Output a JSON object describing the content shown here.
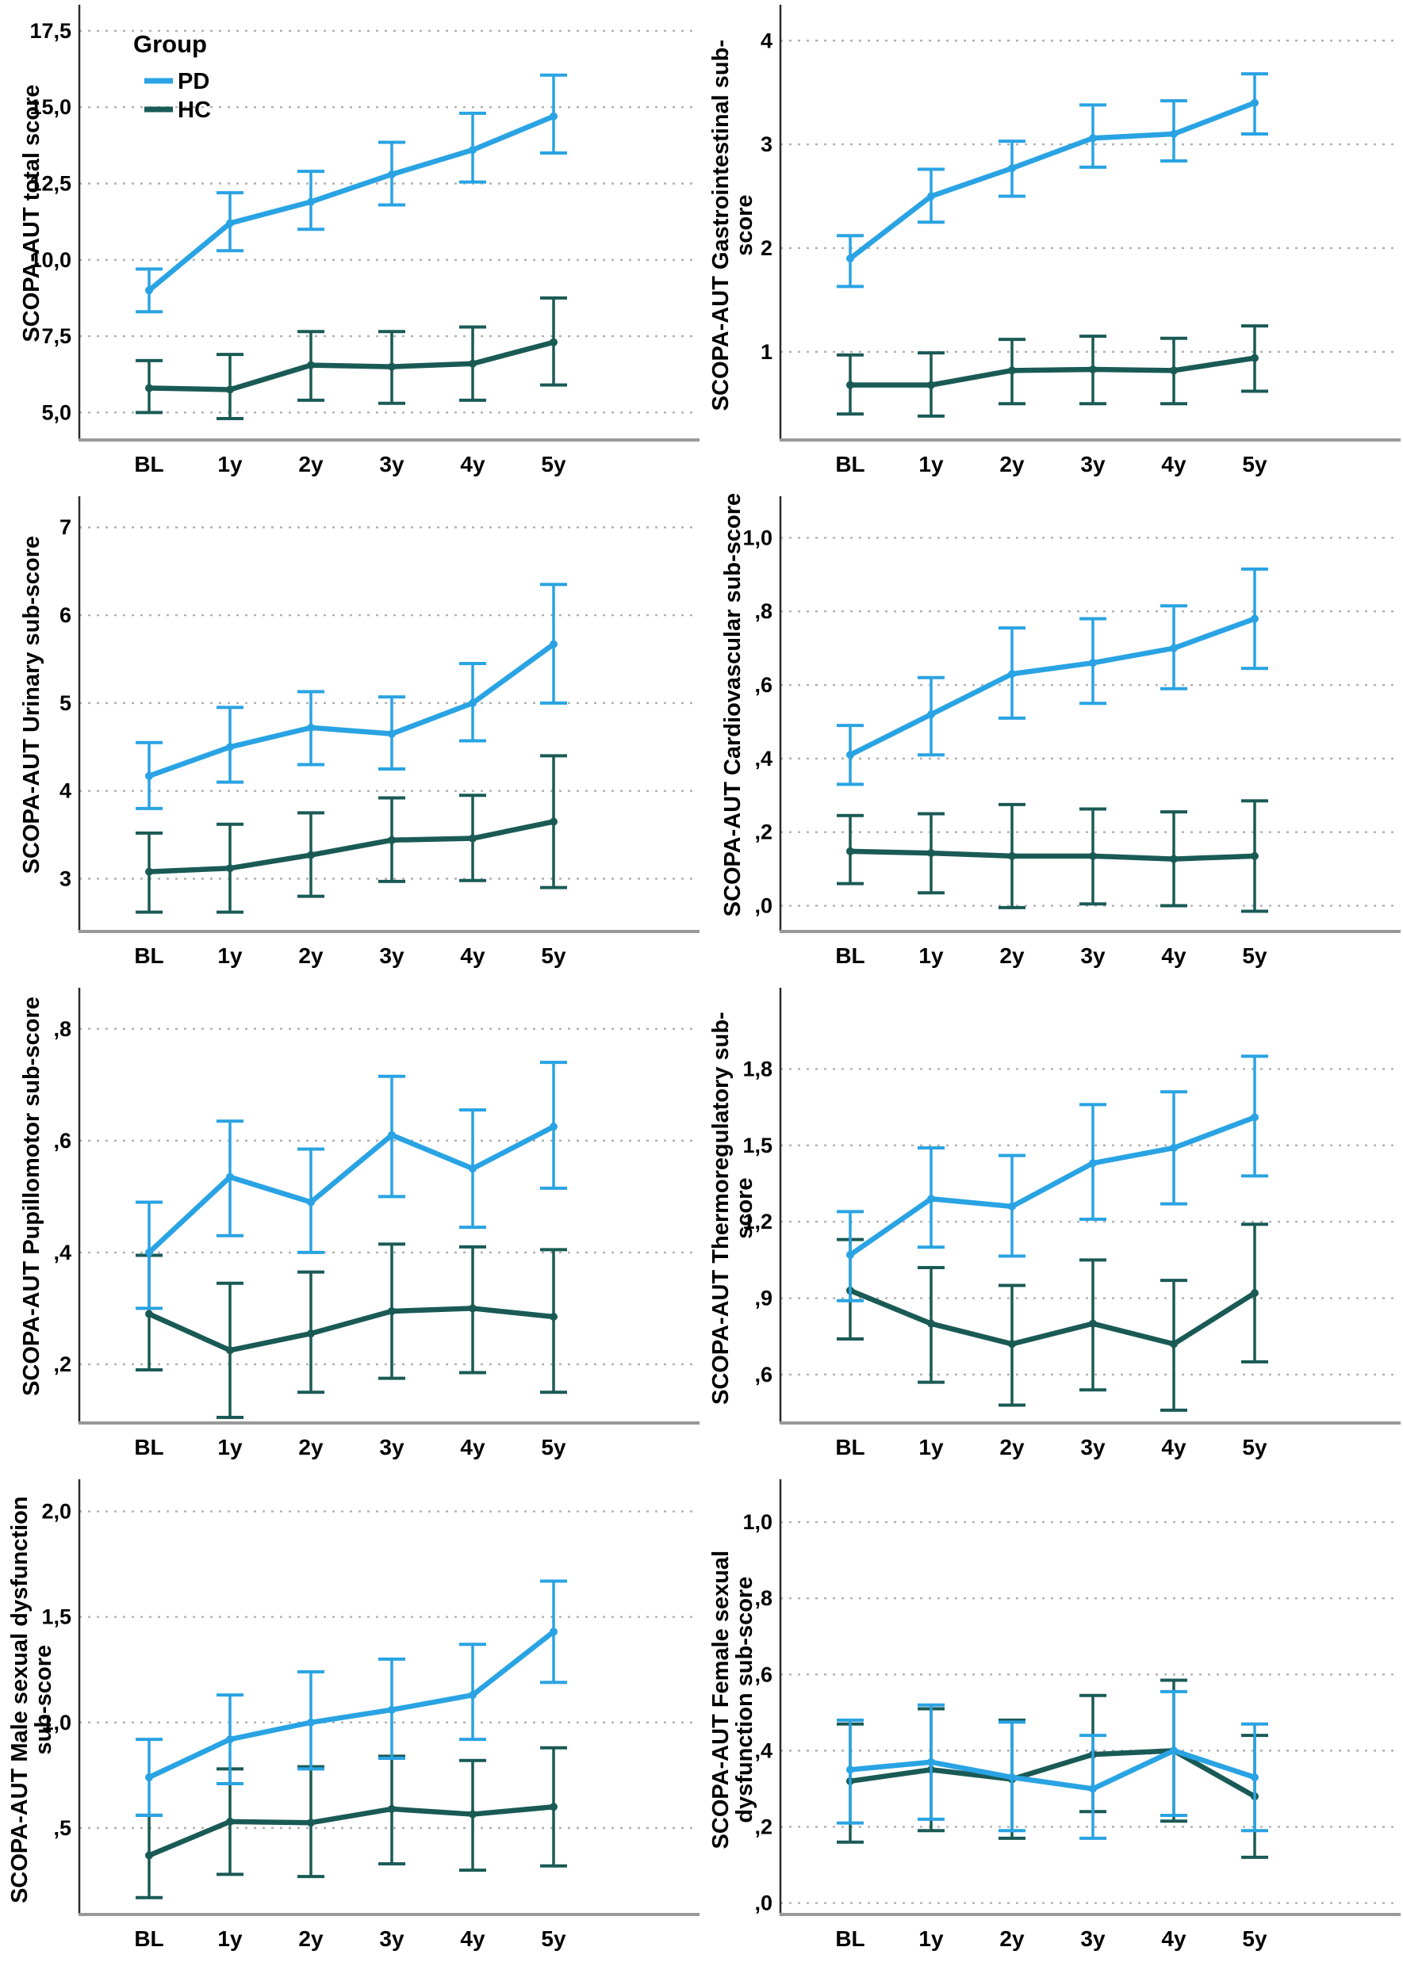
{
  "colors": {
    "pd": "#29A3E3",
    "hc": "#1A5A55",
    "grid": "#b0b0b0",
    "spine_left": "#2a2a2a",
    "spine_bottom": "#999999",
    "text": "#000000"
  },
  "legend": {
    "title": "Group",
    "items": [
      {
        "label": "PD",
        "colorKey": "pd"
      },
      {
        "label": "HC",
        "colorKey": "hc"
      }
    ]
  },
  "chart_data": [
    {
      "type": "line",
      "title": "SCOPA-AUT total score",
      "categories": [
        "BL",
        "1y",
        "2y",
        "3y",
        "4y",
        "5y"
      ],
      "ylim": [
        4.1,
        18.2
      ],
      "legend": true,
      "yticks": [
        {
          "label": "17,5",
          "v": 17.5
        },
        {
          "label": "15,0",
          "v": 15.0
        },
        {
          "label": "12,5",
          "v": 12.5
        },
        {
          "label": "10,0",
          "v": 10.0
        },
        {
          "label": "7,5",
          "v": 7.5
        },
        {
          "label": "5,0",
          "v": 5.0
        }
      ],
      "series": [
        {
          "name": "PD",
          "colorKey": "pd",
          "values": [
            9.0,
            11.2,
            11.9,
            12.8,
            13.6,
            14.7
          ],
          "lo": [
            8.3,
            10.3,
            11.0,
            11.8,
            12.55,
            13.5
          ],
          "hi": [
            9.7,
            12.2,
            12.9,
            13.85,
            14.8,
            16.05
          ]
        },
        {
          "name": "HC",
          "colorKey": "hc",
          "values": [
            5.8,
            5.75,
            6.55,
            6.5,
            6.6,
            7.3
          ],
          "lo": [
            5.0,
            4.8,
            5.4,
            5.3,
            5.4,
            5.9
          ],
          "hi": [
            6.7,
            6.9,
            7.65,
            7.65,
            7.8,
            8.75
          ]
        }
      ]
    },
    {
      "type": "line",
      "title": "SCOPA-AUT Gastrointestinal sub-\nscore",
      "categories": [
        "BL",
        "1y",
        "2y",
        "3y",
        "4y",
        "5y"
      ],
      "ylim": [
        0.15,
        4.3
      ],
      "legend": false,
      "yticks": [
        {
          "label": "4",
          "v": 4
        },
        {
          "label": "3",
          "v": 3
        },
        {
          "label": "2",
          "v": 2
        },
        {
          "label": "1",
          "v": 1
        }
      ],
      "series": [
        {
          "name": "PD",
          "colorKey": "pd",
          "values": [
            1.9,
            2.5,
            2.77,
            3.06,
            3.1,
            3.4
          ],
          "lo": [
            1.63,
            2.25,
            2.5,
            2.78,
            2.84,
            3.1
          ],
          "hi": [
            2.12,
            2.76,
            3.03,
            3.38,
            3.42,
            3.68
          ]
        },
        {
          "name": "HC",
          "colorKey": "hc",
          "values": [
            0.68,
            0.68,
            0.82,
            0.83,
            0.82,
            0.94
          ],
          "lo": [
            0.4,
            0.38,
            0.5,
            0.5,
            0.5,
            0.62
          ],
          "hi": [
            0.97,
            0.99,
            1.12,
            1.15,
            1.13,
            1.25
          ]
        }
      ]
    },
    {
      "type": "line",
      "title": "SCOPA-AUT Urinary sub-score",
      "categories": [
        "BL",
        "1y",
        "2y",
        "3y",
        "4y",
        "5y"
      ],
      "ylim": [
        2.4,
        7.3
      ],
      "legend": false,
      "yticks": [
        {
          "label": "7",
          "v": 7
        },
        {
          "label": "6",
          "v": 6
        },
        {
          "label": "5",
          "v": 5
        },
        {
          "label": "4",
          "v": 4
        },
        {
          "label": "3",
          "v": 3
        }
      ],
      "series": [
        {
          "name": "PD",
          "colorKey": "pd",
          "values": [
            4.17,
            4.5,
            4.72,
            4.65,
            5.0,
            5.67
          ],
          "lo": [
            3.8,
            4.1,
            4.3,
            4.25,
            4.57,
            5.0
          ],
          "hi": [
            4.55,
            4.95,
            5.13,
            5.07,
            5.45,
            6.35
          ]
        },
        {
          "name": "HC",
          "colorKey": "hc",
          "values": [
            3.08,
            3.12,
            3.27,
            3.44,
            3.46,
            3.65
          ],
          "lo": [
            2.62,
            2.62,
            2.8,
            2.97,
            2.98,
            2.9
          ],
          "hi": [
            3.52,
            3.62,
            3.75,
            3.92,
            3.95,
            4.4
          ]
        }
      ]
    },
    {
      "type": "line",
      "title": "SCOPA-AUT Cardiovascular sub-score",
      "categories": [
        "BL",
        "1y",
        "2y",
        "3y",
        "4y",
        "5y"
      ],
      "ylim": [
        -0.07,
        1.1
      ],
      "legend": false,
      "yticks": [
        {
          "label": "1,0",
          "v": 1.0
        },
        {
          "label": ",8",
          "v": 0.8
        },
        {
          "label": ",6",
          "v": 0.6
        },
        {
          "label": ",4",
          "v": 0.4
        },
        {
          "label": ",2",
          "v": 0.2
        },
        {
          "label": ",0",
          "v": 0.0
        }
      ],
      "series": [
        {
          "name": "PD",
          "colorKey": "pd",
          "values": [
            0.41,
            0.52,
            0.63,
            0.66,
            0.7,
            0.78
          ],
          "lo": [
            0.33,
            0.41,
            0.51,
            0.55,
            0.59,
            0.645
          ],
          "hi": [
            0.49,
            0.62,
            0.755,
            0.78,
            0.815,
            0.915
          ]
        },
        {
          "name": "HC",
          "colorKey": "hc",
          "values": [
            0.148,
            0.143,
            0.135,
            0.135,
            0.127,
            0.135
          ],
          "lo": [
            0.06,
            0.035,
            -0.005,
            0.005,
            0.0,
            -0.015
          ],
          "hi": [
            0.245,
            0.25,
            0.275,
            0.263,
            0.255,
            0.285
          ]
        }
      ]
    },
    {
      "type": "line",
      "title": "SCOPA-AUT Pupillomotor sub-score",
      "categories": [
        "BL",
        "1y",
        "2y",
        "3y",
        "4y",
        "5y"
      ],
      "ylim": [
        0.095,
        0.865
      ],
      "legend": false,
      "yticks": [
        {
          "label": ",8",
          "v": 0.8
        },
        {
          "label": ",6",
          "v": 0.6
        },
        {
          "label": ",4",
          "v": 0.4
        },
        {
          "label": ",2",
          "v": 0.2
        }
      ],
      "series": [
        {
          "name": "PD",
          "colorKey": "pd",
          "values": [
            0.4,
            0.535,
            0.49,
            0.61,
            0.55,
            0.625
          ],
          "lo": [
            0.3,
            0.43,
            0.4,
            0.5,
            0.445,
            0.515
          ],
          "hi": [
            0.49,
            0.635,
            0.585,
            0.715,
            0.655,
            0.74
          ]
        },
        {
          "name": "HC",
          "colorKey": "hc",
          "values": [
            0.29,
            0.225,
            0.255,
            0.295,
            0.3,
            0.285
          ],
          "lo": [
            0.19,
            0.105,
            0.15,
            0.175,
            0.185,
            0.15
          ],
          "hi": [
            0.395,
            0.345,
            0.365,
            0.415,
            0.41,
            0.405
          ]
        }
      ]
    },
    {
      "type": "line",
      "title": "SCOPA-AUT Thermoregulatory sub-\nscore",
      "categories": [
        "BL",
        "1y",
        "2y",
        "3y",
        "4y",
        "5y"
      ],
      "ylim": [
        0.41,
        2.1
      ],
      "legend": false,
      "yticks": [
        {
          "label": "1,8",
          "v": 1.8
        },
        {
          "label": "1,5",
          "v": 1.5
        },
        {
          "label": "1,2",
          "v": 1.2
        },
        {
          "label": ",9",
          "v": 0.9
        },
        {
          "label": ",6",
          "v": 0.6
        }
      ],
      "series": [
        {
          "name": "PD",
          "colorKey": "pd",
          "values": [
            1.07,
            1.29,
            1.26,
            1.43,
            1.49,
            1.61
          ],
          "lo": [
            0.89,
            1.1,
            1.065,
            1.21,
            1.27,
            1.38
          ],
          "hi": [
            1.24,
            1.49,
            1.46,
            1.66,
            1.71,
            1.85
          ]
        },
        {
          "name": "HC",
          "colorKey": "hc",
          "values": [
            0.93,
            0.8,
            0.72,
            0.8,
            0.72,
            0.92
          ],
          "lo": [
            0.74,
            0.57,
            0.48,
            0.54,
            0.46,
            0.65
          ],
          "hi": [
            1.13,
            1.02,
            0.95,
            1.05,
            0.97,
            1.19
          ]
        }
      ]
    },
    {
      "type": "line",
      "title": "SCOPA-AUT Male sexual dysfunction\nsub-score",
      "categories": [
        "BL",
        "1y",
        "2y",
        "3y",
        "4y",
        "5y"
      ],
      "ylim": [
        0.09,
        2.13
      ],
      "legend": false,
      "yticks": [
        {
          "label": "2,0",
          "v": 2.0
        },
        {
          "label": "1,5",
          "v": 1.5
        },
        {
          "label": "1,0",
          "v": 1.0
        },
        {
          "label": ",5",
          "v": 0.5
        }
      ],
      "series": [
        {
          "name": "PD",
          "colorKey": "pd",
          "values": [
            0.74,
            0.92,
            1.0,
            1.06,
            1.13,
            1.43
          ],
          "lo": [
            0.56,
            0.71,
            0.78,
            0.83,
            0.92,
            1.19
          ],
          "hi": [
            0.92,
            1.13,
            1.24,
            1.3,
            1.37,
            1.67
          ]
        },
        {
          "name": "HC",
          "colorKey": "hc",
          "values": [
            0.37,
            0.53,
            0.525,
            0.59,
            0.565,
            0.6
          ],
          "lo": [
            0.17,
            0.28,
            0.27,
            0.33,
            0.3,
            0.32
          ],
          "hi": [
            0.56,
            0.78,
            0.79,
            0.84,
            0.82,
            0.88
          ]
        }
      ]
    },
    {
      "type": "line",
      "title": "SCOPA-AUT Female sexual\ndysfunction sub-score",
      "categories": [
        "BL",
        "1y",
        "2y",
        "3y",
        "4y",
        "5y"
      ],
      "ylim": [
        -0.03,
        1.1
      ],
      "legend": false,
      "yticks": [
        {
          "label": "1,0",
          "v": 1.0
        },
        {
          "label": ",8",
          "v": 0.8
        },
        {
          "label": ",6",
          "v": 0.6
        },
        {
          "label": ",4",
          "v": 0.4
        },
        {
          "label": ",2",
          "v": 0.2
        },
        {
          "label": ",0",
          "v": 0.0
        }
      ],
      "series": [
        {
          "name": "PD",
          "colorKey": "pd",
          "values": [
            0.35,
            0.37,
            0.33,
            0.3,
            0.4,
            0.33
          ],
          "lo": [
            0.21,
            0.22,
            0.19,
            0.17,
            0.23,
            0.19
          ],
          "hi": [
            0.48,
            0.52,
            0.475,
            0.44,
            0.555,
            0.47
          ]
        },
        {
          "name": "HC",
          "colorKey": "hc",
          "values": [
            0.32,
            0.35,
            0.325,
            0.39,
            0.4,
            0.28
          ],
          "lo": [
            0.16,
            0.19,
            0.17,
            0.24,
            0.215,
            0.12
          ],
          "hi": [
            0.47,
            0.51,
            0.48,
            0.545,
            0.585,
            0.44
          ]
        }
      ]
    }
  ]
}
